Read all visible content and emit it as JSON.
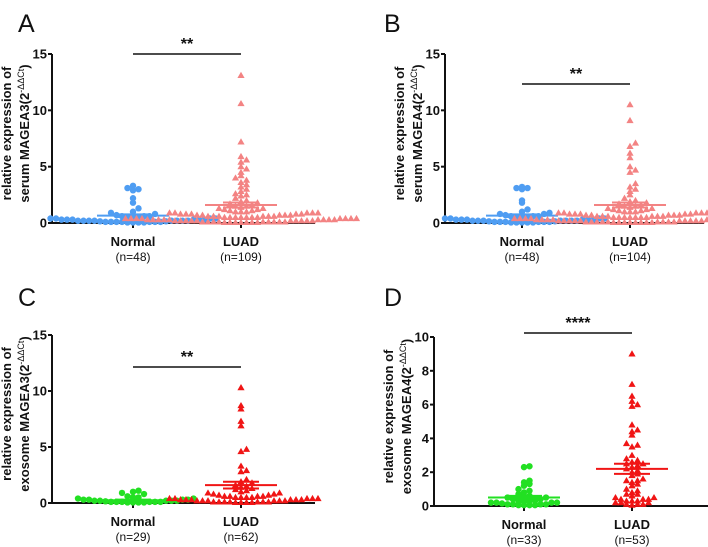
{
  "chart_data": [
    {
      "type": "scatter",
      "panel": "A",
      "ylabel": {
        "line1": "relative expression of",
        "line2": "serum MAGEA3(2",
        "sup": "-ΔΔCt",
        "end": ")"
      },
      "ylim": [
        0,
        15
      ],
      "yticks": [
        "0",
        "5",
        "10",
        "15"
      ],
      "significance": "**",
      "groups": [
        {
          "name": "Normal",
          "n_label": "(n=48)",
          "color": "#4F9DF2",
          "marker": "circle",
          "mean": 0.65,
          "sem": 0.12,
          "values": [
            3.3,
            3.1,
            3.0,
            2.9,
            2.2,
            1.8,
            1.3,
            1.0,
            0.9,
            0.8,
            0.7,
            0.6,
            0.6,
            0.5,
            0.5,
            0.4,
            0.4,
            0.4,
            0.3,
            0.3,
            0.3,
            0.3,
            0.2,
            0.2,
            0.2,
            0.2,
            0.2,
            0.2,
            0.15,
            0.15,
            0.1,
            0.1,
            0.1,
            0.1,
            0.1,
            0.1,
            0.05,
            0.05,
            0.05,
            0.05,
            0.3,
            0.4,
            0.5,
            0.2,
            0.1,
            0.3,
            0.6,
            0.2
          ]
        },
        {
          "name": "LUAD",
          "n_label": "(n=109)",
          "color": "#F38383",
          "marker": "triangle",
          "mean": 1.6,
          "sem": 0.22,
          "values": [
            13.1,
            10.6,
            7.2,
            5.9,
            5.6,
            5.4,
            5.0,
            4.8,
            4.5,
            4.2,
            4.0,
            3.8,
            3.6,
            3.4,
            3.2,
            3.0,
            2.8,
            2.6,
            2.5,
            2.4,
            2.2,
            2.0,
            1.9,
            1.8,
            1.7,
            1.6,
            1.5,
            1.5,
            1.4,
            1.3,
            1.3,
            1.2,
            1.2,
            1.1,
            1.1,
            1.0,
            1.0,
            1.0,
            0.9,
            0.9,
            0.9,
            0.8,
            0.8,
            0.7,
            0.7,
            0.6,
            0.6,
            0.5,
            0.5,
            0.4,
            0.9,
            0.8,
            0.7,
            0.6,
            0.5,
            0.4,
            0.4,
            0.3,
            0.3,
            0.2,
            0.8,
            0.7,
            0.6,
            0.5,
            0.4,
            0.3,
            0.3,
            0.2,
            0.2,
            0.1,
            0.9,
            0.7,
            0.5,
            0.4,
            0.3,
            0.3,
            0.2,
            0.2,
            0.1,
            0.1,
            0.6,
            0.5,
            0.4,
            0.3,
            0.2,
            0.2,
            0.1,
            0.1,
            0.05,
            0.05,
            0.8,
            0.6,
            0.4,
            0.3,
            0.2,
            0.2,
            0.1,
            0.1,
            0.05,
            0.05,
            0.5,
            0.4,
            0.3,
            0.2,
            0.1,
            0.1,
            0.05,
            0.05,
            0.05
          ]
        }
      ]
    },
    {
      "type": "scatter",
      "panel": "B",
      "ylabel": {
        "line1": "relative expression of",
        "line2": "serum MAGEA4(2",
        "sup": "-ΔΔCt",
        "end": ")"
      },
      "ylim": [
        0,
        15
      ],
      "yticks": [
        "0",
        "5",
        "10",
        "15"
      ],
      "significance": "**",
      "groups": [
        {
          "name": "Normal",
          "n_label": "(n=48)",
          "color": "#4F9DF2",
          "marker": "circle",
          "mean": 0.65,
          "sem": 0.12,
          "values": [
            3.2,
            3.1,
            3.1,
            3.0,
            2.0,
            1.8,
            1.2,
            1.0,
            0.9,
            0.8,
            0.8,
            0.7,
            0.6,
            0.6,
            0.5,
            0.5,
            0.4,
            0.4,
            0.4,
            0.3,
            0.3,
            0.3,
            0.3,
            0.2,
            0.2,
            0.2,
            0.2,
            0.2,
            0.15,
            0.15,
            0.1,
            0.1,
            0.1,
            0.1,
            0.1,
            0.05,
            0.05,
            0.05,
            0.05,
            0.05,
            0.3,
            0.4,
            0.5,
            0.2,
            0.1,
            0.3,
            0.6,
            0.2
          ]
        },
        {
          "name": "LUAD",
          "n_label": "(n=104)",
          "color": "#F38383",
          "marker": "triangle",
          "mean": 1.6,
          "sem": 0.22,
          "values": [
            10.5,
            9.1,
            7.1,
            6.8,
            6.2,
            5.8,
            5.0,
            4.7,
            4.5,
            3.5,
            3.2,
            3.0,
            2.8,
            2.5,
            2.2,
            2.0,
            1.9,
            1.8,
            1.7,
            1.6,
            1.5,
            1.5,
            1.4,
            1.3,
            1.3,
            1.2,
            1.2,
            1.1,
            1.1,
            1.0,
            1.0,
            1.0,
            0.9,
            0.9,
            0.9,
            0.8,
            0.8,
            0.7,
            0.7,
            0.6,
            0.6,
            0.5,
            0.5,
            0.4,
            0.9,
            0.8,
            0.7,
            0.6,
            0.5,
            0.4,
            0.4,
            0.3,
            0.3,
            0.2,
            0.8,
            0.7,
            0.6,
            0.5,
            0.4,
            0.3,
            0.3,
            0.2,
            0.2,
            0.1,
            0.9,
            0.7,
            0.5,
            0.4,
            0.3,
            0.3,
            0.2,
            0.2,
            0.1,
            0.1,
            0.6,
            0.5,
            0.4,
            0.3,
            0.2,
            0.2,
            0.1,
            0.1,
            0.05,
            0.05,
            0.8,
            0.6,
            0.4,
            0.3,
            0.2,
            0.2,
            0.1,
            0.1,
            0.05,
            0.05,
            0.5,
            0.4,
            0.3,
            0.2,
            0.1,
            0.1,
            0.05,
            0.05,
            0.05,
            0.05
          ]
        }
      ]
    },
    {
      "type": "scatter",
      "panel": "C",
      "ylabel": {
        "line1": "relative expression of",
        "line2": "exosome MAGEA3(2",
        "sup": "-ΔΔCt",
        "end": ")"
      },
      "ylim": [
        0,
        15
      ],
      "yticks": [
        "0",
        "5",
        "10",
        "15"
      ],
      "significance": "**",
      "groups": [
        {
          "name": "Normal",
          "n_label": "(n=29)",
          "color": "#22E022",
          "marker": "circle",
          "mean": 0.25,
          "sem": 0.05,
          "values": [
            1.1,
            1.0,
            0.9,
            0.8,
            0.6,
            0.5,
            0.5,
            0.4,
            0.4,
            0.3,
            0.3,
            0.3,
            0.2,
            0.2,
            0.2,
            0.2,
            0.1,
            0.1,
            0.1,
            0.1,
            0.1,
            0.1,
            0.05,
            0.05,
            0.05,
            0.05,
            0.3,
            0.2,
            0.15
          ]
        },
        {
          "name": "LUAD",
          "n_label": "(n=62)",
          "color": "#F01515",
          "marker": "triangle",
          "mean": 1.6,
          "sem": 0.3,
          "values": [
            10.3,
            8.7,
            8.4,
            7.3,
            6.9,
            4.8,
            4.6,
            3.3,
            2.9,
            2.8,
            2.1,
            1.9,
            1.8,
            1.6,
            1.5,
            1.4,
            1.3,
            1.2,
            1.1,
            1.0,
            0.9,
            0.9,
            0.8,
            0.8,
            0.7,
            0.7,
            0.6,
            0.6,
            0.6,
            0.5,
            0.5,
            0.5,
            0.5,
            0.4,
            0.4,
            0.4,
            0.4,
            0.3,
            0.3,
            0.3,
            0.3,
            0.3,
            0.2,
            0.2,
            0.2,
            0.2,
            0.2,
            0.2,
            0.1,
            0.1,
            0.1,
            0.1,
            0.1,
            0.1,
            0.1,
            0.05,
            0.05,
            0.05,
            0.05,
            0.6,
            0.4,
            0.3
          ]
        }
      ]
    },
    {
      "type": "scatter",
      "panel": "D",
      "ylabel": {
        "line1": "relative expression of",
        "line2": "exosome MAGEA4(2",
        "sup": "-ΔΔCt",
        "end": ")"
      },
      "ylim": [
        0,
        10
      ],
      "yticks": [
        "0",
        "2",
        "4",
        "6",
        "8",
        "10"
      ],
      "significance": "****",
      "groups": [
        {
          "name": "Normal",
          "n_label": "(n=33)",
          "color": "#22E022",
          "marker": "circle",
          "mean": 0.5,
          "sem": 0.1,
          "values": [
            2.35,
            2.3,
            1.5,
            1.4,
            1.3,
            1.2,
            1.0,
            0.9,
            0.8,
            0.7,
            0.6,
            0.6,
            0.5,
            0.5,
            0.4,
            0.4,
            0.3,
            0.3,
            0.25,
            0.2,
            0.2,
            0.2,
            0.15,
            0.1,
            0.1,
            0.1,
            0.1,
            0.05,
            0.05,
            0.05,
            0.05,
            0.3,
            0.2
          ]
        },
        {
          "name": "LUAD",
          "n_label": "(n=53)",
          "color": "#F01515",
          "marker": "triangle",
          "mean": 2.2,
          "sem": 0.3,
          "values": [
            9.0,
            7.2,
            6.5,
            6.2,
            6.0,
            5.9,
            4.8,
            4.5,
            4.4,
            4.2,
            3.7,
            3.6,
            3.5,
            3.0,
            2.8,
            2.7,
            2.6,
            2.5,
            2.5,
            2.4,
            2.3,
            2.2,
            2.1,
            2.0,
            1.9,
            1.8,
            1.6,
            1.5,
            1.5,
            1.4,
            1.3,
            1.2,
            1.0,
            0.9,
            0.8,
            0.7,
            0.7,
            0.6,
            0.5,
            0.5,
            0.4,
            0.4,
            0.4,
            0.3,
            0.3,
            0.3,
            0.2,
            0.2,
            0.2,
            0.1,
            0.1,
            0.1,
            0.05
          ]
        }
      ]
    }
  ]
}
